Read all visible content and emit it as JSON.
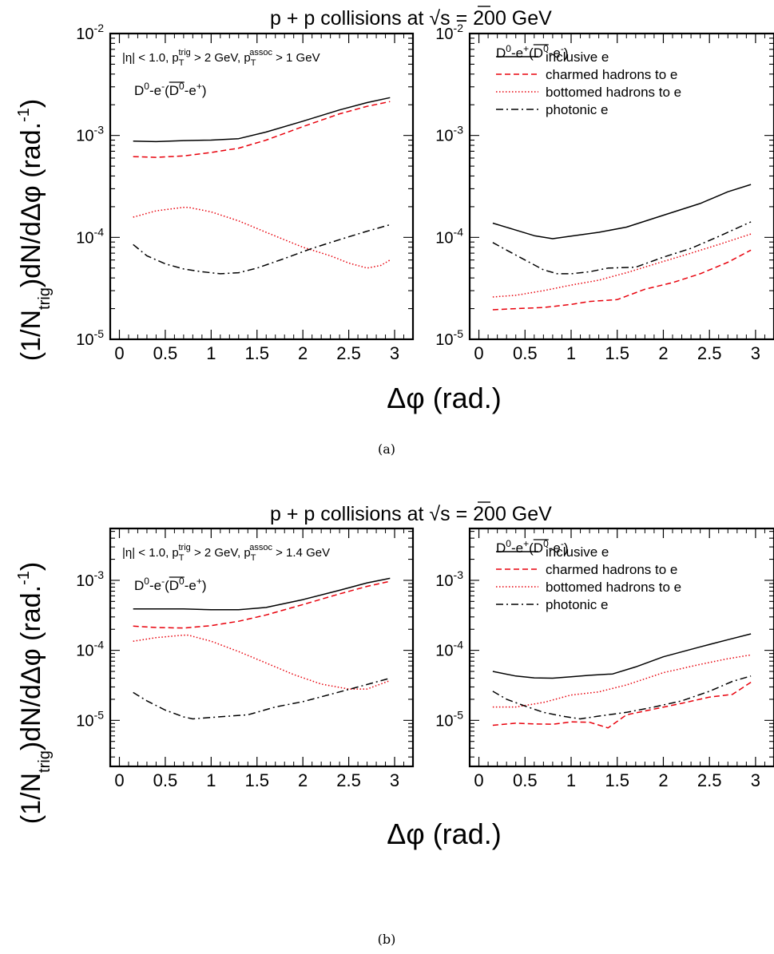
{
  "figure": {
    "captions": [
      "(a)",
      "(b)"
    ],
    "title_parts": [
      "p + p collisions at ",
      "s",
      " = 200 GeV"
    ],
    "ylabel_parts": [
      "(1/N",
      "trig",
      ")dN/d",
      "Δφ",
      " (rad.",
      "-1",
      ")"
    ],
    "xlabel": "Δφ (rad.)"
  },
  "colors": {
    "black": "#000000",
    "red": "#e8000b"
  },
  "chart_data": [
    {
      "type": "line",
      "panel": "(a) left",
      "xlim": [
        -0.1,
        3.2
      ],
      "ylim": [
        1e-05,
        0.01
      ],
      "yscale": "log",
      "xticks": [
        "0",
        "0.5",
        "1",
        "1.5",
        "2",
        "2.5",
        "3"
      ],
      "yticks": [
        {
          "base": "10",
          "exp": "-2"
        },
        {
          "base": "10",
          "exp": "-3"
        },
        {
          "base": "10",
          "exp": "-4"
        },
        {
          "base": "10",
          "exp": "-5"
        }
      ],
      "cut_label": {
        "a": "|η| < 1.0, p",
        "b": "T",
        "c": "trig",
        "d": " > 2 GeV, p",
        "e": "T",
        "f": "assoc",
        "g": " > 1 GeV"
      },
      "channel_label": {
        "a": "D",
        "b": "0",
        "c": "-e",
        "d": "-",
        "e": "(",
        "f": "D",
        "g": "0",
        "h": "-e",
        "i": "+",
        "j": ")"
      },
      "legend": null,
      "series": [
        {
          "style": "solid",
          "color": "#000000",
          "x": [
            0.15,
            0.4,
            0.7,
            1.0,
            1.3,
            1.6,
            2.0,
            2.4,
            2.7,
            2.95
          ],
          "y": [
            0.00088,
            0.00087,
            0.00089,
            0.0009,
            0.00093,
            0.00108,
            0.00138,
            0.00178,
            0.0021,
            0.00235
          ]
        },
        {
          "style": "dashed",
          "color": "#e8000b",
          "x": [
            0.15,
            0.4,
            0.7,
            1.0,
            1.3,
            1.6,
            2.0,
            2.4,
            2.7,
            2.95
          ],
          "y": [
            0.00062,
            0.00061,
            0.00063,
            0.00068,
            0.00075,
            0.0009,
            0.00122,
            0.00163,
            0.00193,
            0.00215
          ]
        },
        {
          "style": "dotted",
          "color": "#e8000b",
          "x": [
            0.15,
            0.4,
            0.7,
            0.75,
            1.0,
            1.3,
            1.6,
            2.0,
            2.3,
            2.5,
            2.7,
            2.85,
            2.95
          ],
          "y": [
            0.000158,
            0.000182,
            0.000197,
            0.000197,
            0.000178,
            0.000145,
            0.000112,
            8e-05,
            6.6e-05,
            5.6e-05,
            5e-05,
            5.3e-05,
            6e-05
          ]
        },
        {
          "style": "dashdot",
          "color": "#000000",
          "x": [
            0.15,
            0.3,
            0.5,
            0.7,
            0.9,
            1.1,
            1.3,
            1.5,
            1.8,
            2.1,
            2.4,
            2.7,
            2.95
          ],
          "y": [
            8.5e-05,
            6.6e-05,
            5.5e-05,
            4.9e-05,
            4.6e-05,
            4.4e-05,
            4.5e-05,
            5e-05,
            6.2e-05,
            7.8e-05,
            9.5e-05,
            0.000115,
            0.000133
          ]
        }
      ]
    },
    {
      "type": "line",
      "panel": "(a) right",
      "xlim": [
        -0.1,
        3.2
      ],
      "ylim": [
        1e-05,
        0.01
      ],
      "yscale": "log",
      "xticks": [
        "0",
        "0.5",
        "1",
        "1.5",
        "2",
        "2.5",
        "3"
      ],
      "yticks": [
        {
          "base": "10",
          "exp": "-2"
        },
        {
          "base": "10",
          "exp": "-3"
        },
        {
          "base": "10",
          "exp": "-4"
        },
        {
          "base": "10",
          "exp": "-5"
        }
      ],
      "cut_label": null,
      "channel_label": {
        "a": "D",
        "b": "0",
        "c": "-e",
        "d": "+",
        "e": "(",
        "f": "D",
        "g": "0",
        "h": "-e",
        "i": "-",
        "j": ")"
      },
      "legend": [
        "inclusive e",
        "charmed hadrons to e",
        "bottomed hadrons to e",
        "photonic e"
      ],
      "series": [
        {
          "style": "solid",
          "color": "#000000",
          "x": [
            0.15,
            0.4,
            0.6,
            0.8,
            1.0,
            1.3,
            1.6,
            2.0,
            2.4,
            2.7,
            2.95
          ],
          "y": [
            0.000138,
            0.000118,
            0.000104,
            9.7e-05,
            0.000103,
            0.000112,
            0.000126,
            0.000165,
            0.000215,
            0.00028,
            0.00033
          ]
        },
        {
          "style": "dashed",
          "color": "#e8000b",
          "x": [
            0.15,
            0.4,
            0.7,
            1.0,
            1.2,
            1.5,
            1.8,
            2.1,
            2.4,
            2.7,
            2.95
          ],
          "y": [
            1.95e-05,
            2e-05,
            2.05e-05,
            2.2e-05,
            2.35e-05,
            2.45e-05,
            3.1e-05,
            3.6e-05,
            4.4e-05,
            5.7e-05,
            7.5e-05
          ]
        },
        {
          "style": "dotted",
          "color": "#e8000b",
          "x": [
            0.15,
            0.4,
            0.7,
            1.0,
            1.3,
            1.6,
            2.0,
            2.3,
            2.6,
            2.95
          ],
          "y": [
            2.6e-05,
            2.7e-05,
            3e-05,
            3.4e-05,
            3.8e-05,
            4.5e-05,
            5.8e-05,
            7e-05,
            8.5e-05,
            0.000108
          ]
        },
        {
          "style": "dashdot",
          "color": "#000000",
          "x": [
            0.15,
            0.3,
            0.5,
            0.7,
            0.85,
            1.0,
            1.2,
            1.4,
            1.7,
            2.0,
            2.3,
            2.6,
            2.95
          ],
          "y": [
            8.9e-05,
            7.5e-05,
            6e-05,
            4.8e-05,
            4.4e-05,
            4.4e-05,
            4.6e-05,
            5e-05,
            5.1e-05,
            6.4e-05,
            7.8e-05,
            0.000102,
            0.000142
          ]
        }
      ]
    },
    {
      "type": "line",
      "panel": "(b) left",
      "xlim": [
        -0.1,
        3.2
      ],
      "ylim": [
        2.2e-06,
        0.0055
      ],
      "yscale": "log",
      "xticks": [
        "0",
        "0.5",
        "1",
        "1.5",
        "2",
        "2.5",
        "3"
      ],
      "yticks": [
        {
          "base": "10",
          "exp": "-3"
        },
        {
          "base": "10",
          "exp": "-4"
        },
        {
          "base": "10",
          "exp": "-5"
        }
      ],
      "cut_label": {
        "a": "|η| < 1.0, p",
        "b": "T",
        "c": "trig",
        "d": " > 2 GeV, p",
        "e": "T",
        "f": "assoc",
        "g": " > 1.4 GeV"
      },
      "channel_label": {
        "a": "D",
        "b": "0",
        "c": "-e",
        "d": "-",
        "e": "(",
        "f": "D",
        "g": "0",
        "h": "-e",
        "i": "+",
        "j": ")"
      },
      "legend": null,
      "series": [
        {
          "style": "solid",
          "color": "#000000",
          "x": [
            0.15,
            0.4,
            0.7,
            1.0,
            1.3,
            1.6,
            2.0,
            2.4,
            2.7,
            2.95
          ],
          "y": [
            0.00039,
            0.00039,
            0.00039,
            0.00038,
            0.00038,
            0.00041,
            0.00053,
            0.00072,
            0.00092,
            0.00107
          ]
        },
        {
          "style": "dashed",
          "color": "#e8000b",
          "x": [
            0.15,
            0.4,
            0.7,
            1.0,
            1.3,
            1.6,
            2.0,
            2.4,
            2.7,
            2.95
          ],
          "y": [
            0.000222,
            0.000212,
            0.000208,
            0.000225,
            0.00026,
            0.00032,
            0.00045,
            0.00064,
            0.00082,
            0.00097
          ]
        },
        {
          "style": "dotted",
          "color": "#e8000b",
          "x": [
            0.15,
            0.4,
            0.7,
            0.75,
            1.0,
            1.3,
            1.6,
            1.9,
            2.2,
            2.5,
            2.7,
            2.95
          ],
          "y": [
            0.000135,
            0.000152,
            0.000165,
            0.000165,
            0.000135,
            9.6e-05,
            6.6e-05,
            4.5e-05,
            3.3e-05,
            2.8e-05,
            2.8e-05,
            3.7e-05
          ]
        },
        {
          "style": "dashdot",
          "color": "#000000",
          "x": [
            0.15,
            0.3,
            0.5,
            0.7,
            0.8,
            1.0,
            1.2,
            1.4,
            1.7,
            2.0,
            2.3,
            2.6,
            2.95
          ],
          "y": [
            2.5e-05,
            1.9e-05,
            1.4e-05,
            1.12e-05,
            1.05e-05,
            1.1e-05,
            1.15e-05,
            1.2e-05,
            1.55e-05,
            1.85e-05,
            2.35e-05,
            3e-05,
            4e-05
          ]
        }
      ]
    },
    {
      "type": "line",
      "panel": "(b) right",
      "xlim": [
        -0.1,
        3.2
      ],
      "ylim": [
        2.2e-06,
        0.0055
      ],
      "yscale": "log",
      "xticks": [
        "0",
        "0.5",
        "1",
        "1.5",
        "2",
        "2.5",
        "3"
      ],
      "yticks": [
        {
          "base": "10",
          "exp": "-3"
        },
        {
          "base": "10",
          "exp": "-4"
        },
        {
          "base": "10",
          "exp": "-5"
        }
      ],
      "cut_label": null,
      "channel_label": {
        "a": "D",
        "b": "0",
        "c": "-e",
        "d": "+",
        "e": "(",
        "f": "D",
        "g": "0",
        "h": "-e",
        "i": "-",
        "j": ")"
      },
      "legend": [
        "inclusive e",
        "charmed hadrons to e",
        "bottomed hadrons to e",
        "photonic e"
      ],
      "series": [
        {
          "style": "solid",
          "color": "#000000",
          "x": [
            0.15,
            0.4,
            0.6,
            0.8,
            1.0,
            1.2,
            1.45,
            1.7,
            2.0,
            2.4,
            2.7,
            2.95
          ],
          "y": [
            5e-05,
            4.3e-05,
            4.05e-05,
            4e-05,
            4.2e-05,
            4.4e-05,
            4.6e-05,
            5.8e-05,
            8.1e-05,
            0.000112,
            0.000142,
            0.000172
          ]
        },
        {
          "style": "dashed",
          "color": "#e8000b",
          "x": [
            0.15,
            0.4,
            0.6,
            0.8,
            1.0,
            1.2,
            1.4,
            1.6,
            1.9,
            2.2,
            2.5,
            2.75,
            2.95
          ],
          "y": [
            8.5e-06,
            9.1e-06,
            8.9e-06,
            8.8e-06,
            9.5e-06,
            9.4e-06,
            7.8e-06,
            1.2e-05,
            1.45e-05,
            1.75e-05,
            2.15e-05,
            2.35e-05,
            3.5e-05
          ]
        },
        {
          "style": "dotted",
          "color": "#e8000b",
          "x": [
            0.15,
            0.4,
            0.7,
            1.0,
            1.3,
            1.6,
            2.0,
            2.4,
            2.7,
            2.95
          ],
          "y": [
            1.55e-05,
            1.55e-05,
            1.8e-05,
            2.3e-05,
            2.55e-05,
            3.2e-05,
            4.8e-05,
            6.3e-05,
            7.6e-05,
            8.6e-05
          ]
        },
        {
          "style": "dashdot",
          "color": "#000000",
          "x": [
            0.15,
            0.3,
            0.5,
            0.7,
            0.9,
            1.1,
            1.3,
            1.6,
            1.9,
            2.2,
            2.5,
            2.75,
            2.95
          ],
          "y": [
            2.6e-05,
            2e-05,
            1.6e-05,
            1.3e-05,
            1.15e-05,
            1.05e-05,
            1.15e-05,
            1.3e-05,
            1.55e-05,
            1.9e-05,
            2.6e-05,
            3.6e-05,
            4.3e-05
          ]
        }
      ]
    }
  ]
}
